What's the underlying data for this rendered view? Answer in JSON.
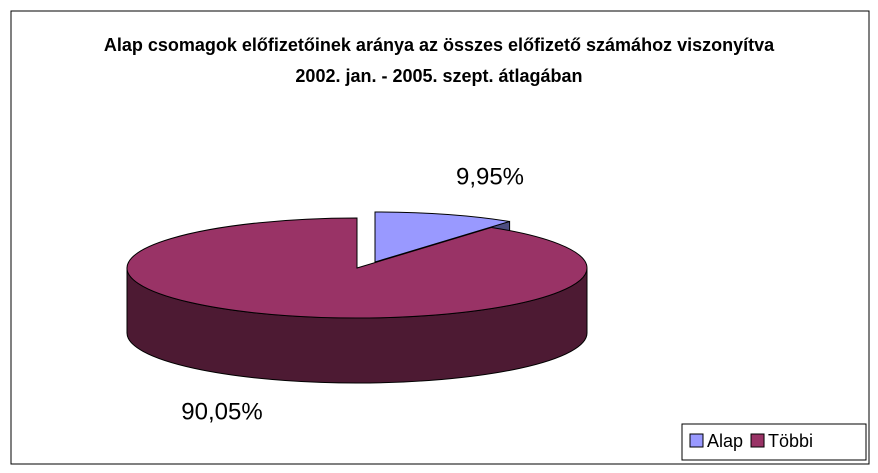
{
  "chart_data": {
    "type": "pie",
    "title": "Alap csomagok előfizetőinek aránya az összes  előfizető számához viszonyítva 2002. jan. - 2005. szept. átlagában",
    "categories": [
      "Alap",
      "Többi"
    ],
    "values": [
      9.95,
      90.05
    ],
    "value_labels": [
      "9,95%",
      "90,05%"
    ],
    "colors": [
      "#9999ff",
      "#993366"
    ],
    "legend": "bottom-right"
  }
}
